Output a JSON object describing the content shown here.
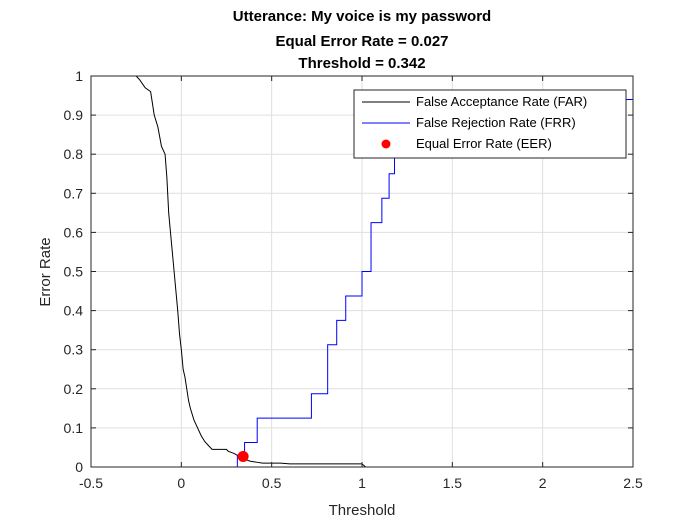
{
  "chart_data": {
    "type": "line",
    "title_lines": [
      "Utterance: My voice is my password",
      "Equal Error Rate = 0.027",
      "Threshold = 0.342"
    ],
    "xlabel": "Threshold",
    "ylabel": "Error Rate",
    "xlim": [
      -0.5,
      2.5
    ],
    "ylim": [
      0,
      1
    ],
    "xticks": [
      -0.5,
      0,
      0.5,
      1,
      1.5,
      2,
      2.5
    ],
    "xtick_labels": [
      "-0.5",
      "0",
      "0.5",
      "1",
      "1.5",
      "2",
      "2.5"
    ],
    "yticks": [
      0,
      0.1,
      0.2,
      0.3,
      0.4,
      0.5,
      0.6,
      0.7,
      0.8,
      0.9,
      1
    ],
    "ytick_labels": [
      "0",
      "0.1",
      "0.2",
      "0.3",
      "0.4",
      "0.5",
      "0.6",
      "0.7",
      "0.8",
      "0.9",
      "1"
    ],
    "grid": true,
    "legend_position": "top-right",
    "series": [
      {
        "name": "False Acceptance Rate (FAR)",
        "color": "#000000",
        "style": "line",
        "x": [
          -0.5,
          -0.25,
          -0.23,
          -0.2,
          -0.17,
          -0.16,
          -0.15,
          -0.13,
          -0.11,
          -0.09,
          -0.08,
          -0.07,
          -0.06,
          -0.05,
          -0.04,
          -0.03,
          -0.02,
          -0.01,
          0.0,
          0.01,
          0.02,
          0.03,
          0.04,
          0.05,
          0.07,
          0.09,
          0.11,
          0.13,
          0.15,
          0.17,
          0.25,
          0.26,
          0.29,
          0.31,
          0.33,
          0.35,
          0.38,
          0.42,
          0.45,
          0.5,
          0.55,
          0.6,
          1.0,
          1.02,
          1.1,
          1.2,
          1.3,
          1.5,
          2.0,
          2.5
        ],
        "y": [
          1.0,
          1.0,
          0.99,
          0.97,
          0.96,
          0.93,
          0.9,
          0.87,
          0.82,
          0.8,
          0.74,
          0.65,
          0.6,
          0.55,
          0.5,
          0.45,
          0.4,
          0.34,
          0.3,
          0.25,
          0.23,
          0.2,
          0.17,
          0.15,
          0.12,
          0.1,
          0.08,
          0.065,
          0.055,
          0.045,
          0.045,
          0.04,
          0.035,
          0.03,
          0.027,
          0.02,
          0.015,
          0.012,
          0.01,
          0.01,
          0.01,
          0.008,
          0.008,
          0.0,
          0.0,
          0.0,
          0.0,
          0.0,
          0.0,
          0.0
        ]
      },
      {
        "name": "False Rejection Rate (FRR)",
        "color": "#0000ff",
        "style": "step",
        "x": [
          -0.5,
          0.31,
          0.31,
          0.35,
          0.35,
          0.42,
          0.42,
          0.72,
          0.72,
          0.81,
          0.81,
          0.86,
          0.86,
          0.91,
          0.91,
          1.0,
          1.0,
          1.05,
          1.05,
          1.11,
          1.11,
          1.15,
          1.15,
          1.18,
          1.18,
          1.28,
          1.28,
          1.36,
          1.36,
          1.45,
          1.45,
          1.6,
          1.6,
          1.8,
          1.8,
          2.0,
          2.0,
          2.2,
          2.2,
          2.5
        ],
        "y": [
          0.0,
          0.0,
          0.03,
          0.03,
          0.0625,
          0.0625,
          0.125,
          0.125,
          0.1875,
          0.1875,
          0.3125,
          0.3125,
          0.375,
          0.375,
          0.4375,
          0.4375,
          0.5,
          0.5,
          0.625,
          0.625,
          0.6875,
          0.6875,
          0.75,
          0.75,
          0.8125,
          0.8125,
          0.85,
          0.85,
          0.875,
          0.875,
          0.9,
          0.9,
          0.91,
          0.91,
          0.92,
          0.92,
          0.93,
          0.93,
          0.94,
          0.94
        ]
      },
      {
        "name": "Equal Error Rate (EER)",
        "color": "#ff0000",
        "style": "marker",
        "x": [
          0.342
        ],
        "y": [
          0.027
        ]
      }
    ]
  }
}
